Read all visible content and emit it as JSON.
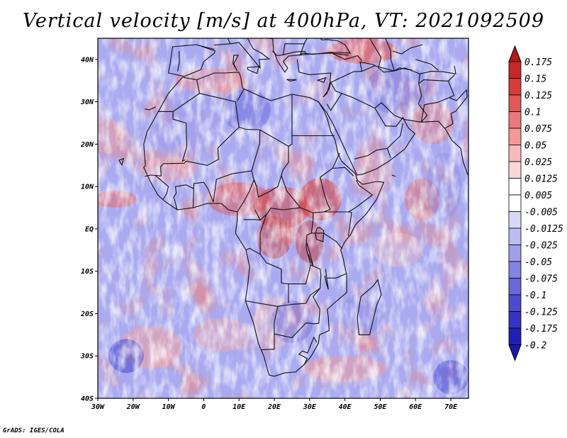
{
  "title": "Vertical velocity [m/s] at 400hPa, VT: 2021092509",
  "credit": "GrADS: IGES/COLA",
  "map": {
    "lon_range": [
      -30,
      75
    ],
    "lat_range": [
      -40,
      45
    ],
    "lat_ticks": [
      {
        "value": 40,
        "label": "40N"
      },
      {
        "value": 30,
        "label": "30N"
      },
      {
        "value": 20,
        "label": "20N"
      },
      {
        "value": 10,
        "label": "10N"
      },
      {
        "value": 0,
        "label": "EQ"
      },
      {
        "value": -10,
        "label": "10S"
      },
      {
        "value": -20,
        "label": "20S"
      },
      {
        "value": -30,
        "label": "30S"
      },
      {
        "value": -40,
        "label": "40S"
      }
    ],
    "lon_ticks": [
      {
        "value": -30,
        "label": "30W"
      },
      {
        "value": -20,
        "label": "20W"
      },
      {
        "value": -10,
        "label": "10W"
      },
      {
        "value": 0,
        "label": "0"
      },
      {
        "value": 10,
        "label": "10E"
      },
      {
        "value": 20,
        "label": "20E"
      },
      {
        "value": 30,
        "label": "30E"
      },
      {
        "value": 40,
        "label": "40E"
      },
      {
        "value": 50,
        "label": "50E"
      },
      {
        "value": 60,
        "label": "60E"
      },
      {
        "value": 70,
        "label": "70E"
      }
    ]
  },
  "colorbar": {
    "levels": [
      {
        "label": "0.175",
        "color": "#b01a1a"
      },
      {
        "label": "0.15",
        "color": "#c42828"
      },
      {
        "label": "0.125",
        "color": "#d53c3c"
      },
      {
        "label": "0.1",
        "color": "#e05858"
      },
      {
        "label": "0.075",
        "color": "#ea7a7a"
      },
      {
        "label": "0.05",
        "color": "#f29a9a"
      },
      {
        "label": "0.025",
        "color": "#f7baba"
      },
      {
        "label": "0.0125",
        "color": "#fbd7d7"
      },
      {
        "label": "0.005",
        "color": "#ffffff"
      },
      {
        "label": "-0.005",
        "color": "#ffffff"
      },
      {
        "label": "-0.0125",
        "color": "#d8d8f7"
      },
      {
        "label": "-0.025",
        "color": "#bcbcf1"
      },
      {
        "label": "-0.05",
        "color": "#a0a0ea"
      },
      {
        "label": "-0.075",
        "color": "#8383e2"
      },
      {
        "label": "-0.1",
        "color": "#6868d9"
      },
      {
        "label": "-0.125",
        "color": "#4c4ccf"
      },
      {
        "label": "-0.175",
        "color": "#3434c2"
      },
      {
        "label": "-0.2",
        "color": "#2020b0"
      }
    ],
    "top_arrow_color": "#b01a1a",
    "bottom_arrow_color": "#1a1aa6"
  }
}
